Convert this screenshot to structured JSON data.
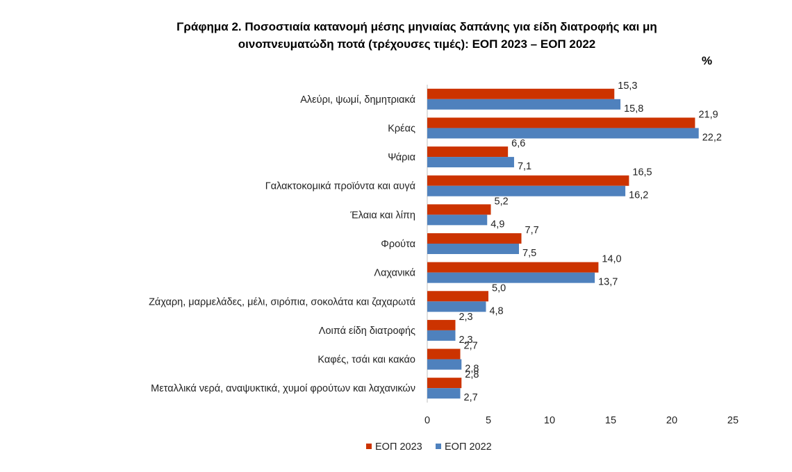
{
  "chart_data": {
    "type": "bar",
    "orientation": "horizontal",
    "title_line1": "Γράφημα 2.  Ποσοστιαία κατανομή μέσης μηνιαίας δαπάνης για είδη διατροφής και μη",
    "title_line2": "οινοπνευματώδη ποτά (τρέχουσες τιμές): ΕΟΠ 2023 – ΕΟΠ 2022",
    "unit": "%",
    "categories": [
      "Αλεύρι, ψωμί, δημητριακά",
      "Κρέας",
      "Ψάρια",
      "Γαλακτοκομικά προϊόντα και αυγά",
      "Έλαια και λίπη",
      "Φρούτα",
      "Λαχανικά",
      "Ζάχαρη, μαρμελάδες, μέλι, σιρόπια, σοκολάτα και ζαχαρωτά",
      "Λοιπά είδη διατροφής",
      "Καφές, τσάι και κακάο",
      "Μεταλλικά νερά, αναψυκτικά, χυμοί φρούτων και λαχανικών"
    ],
    "series": [
      {
        "name": "ΕΟΠ 2023",
        "color": "#cc3300",
        "values": [
          15.3,
          21.9,
          6.6,
          16.5,
          5.2,
          7.7,
          14.0,
          5.0,
          2.3,
          2.7,
          2.8
        ],
        "labels": [
          "15,3",
          "21,9",
          "6,6",
          "16,5",
          "5,2",
          "7,7",
          "14,0",
          "5,0",
          "2,3",
          "2,7",
          "2,8"
        ]
      },
      {
        "name": "ΕΟΠ 2022",
        "color": "#4f81bd",
        "values": [
          15.8,
          22.2,
          7.1,
          16.2,
          4.9,
          7.5,
          13.7,
          4.8,
          2.3,
          2.8,
          2.7
        ],
        "labels": [
          "15,8",
          "22,2",
          "7,1",
          "16,2",
          "4,9",
          "7,5",
          "13,7",
          "4,8",
          "2,3",
          "2,8",
          "2,7"
        ]
      }
    ],
    "xlim": [
      0,
      25
    ],
    "xticks": [
      0,
      5,
      10,
      15,
      20,
      25
    ],
    "xtick_labels": [
      "0",
      "5",
      "10",
      "15",
      "20",
      "25"
    ],
    "grid": false,
    "legend_position": "bottom"
  }
}
